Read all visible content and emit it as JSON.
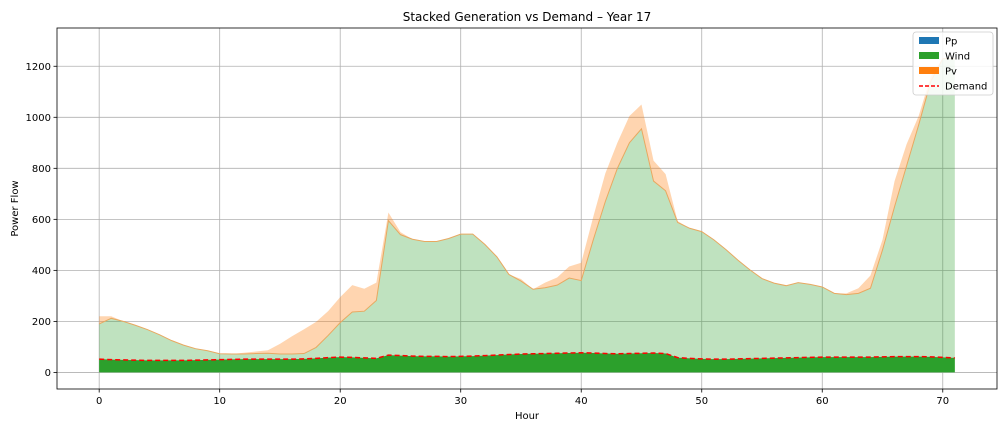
{
  "chart_data": {
    "type": "area",
    "title": "Stacked Generation vs Demand – Year 17",
    "xlabel": "Hour",
    "ylabel": "Power Flow",
    "xlim": [
      -3.5,
      74.5
    ],
    "ylim": [
      -65,
      1350
    ],
    "xticks": [
      0,
      10,
      20,
      30,
      40,
      50,
      60,
      70
    ],
    "yticks": [
      0,
      200,
      400,
      600,
      800,
      1000,
      1200
    ],
    "grid": true,
    "legend_position": "top-right",
    "x": [
      0,
      1,
      2,
      3,
      4,
      5,
      6,
      7,
      8,
      9,
      10,
      11,
      12,
      13,
      14,
      15,
      16,
      17,
      18,
      19,
      20,
      21,
      22,
      23,
      24,
      25,
      26,
      27,
      28,
      29,
      30,
      31,
      32,
      33,
      34,
      35,
      36,
      37,
      38,
      39,
      40,
      41,
      42,
      43,
      44,
      45,
      46,
      47,
      48,
      49,
      50,
      51,
      52,
      53,
      54,
      55,
      56,
      57,
      58,
      59,
      60,
      61,
      62,
      63,
      64,
      65,
      66,
      67,
      68,
      69,
      70,
      71
    ],
    "series": [
      {
        "name": "Pp",
        "color": "#1f77b4",
        "values": [
          0,
          0,
          0,
          0,
          0,
          0,
          0,
          0,
          0,
          0,
          0,
          0,
          0,
          0,
          0,
          0,
          0,
          0,
          0,
          0,
          0,
          0,
          0,
          0,
          0,
          0,
          0,
          0,
          0,
          0,
          0,
          0,
          0,
          0,
          0,
          0,
          0,
          0,
          0,
          0,
          0,
          0,
          0,
          0,
          0,
          0,
          0,
          0,
          0,
          0,
          0,
          0,
          0,
          0,
          0,
          0,
          0,
          0,
          0,
          0,
          0,
          0,
          0,
          0,
          0,
          0,
          0,
          0,
          0,
          0,
          0,
          0
        ]
      },
      {
        "name": "Wind",
        "color": "#2ca02c",
        "values": [
          190,
          212,
          200,
          185,
          168,
          148,
          125,
          107,
          93,
          85,
          73,
          72,
          72,
          74,
          75,
          72,
          72,
          74,
          98,
          145,
          195,
          237,
          240,
          282,
          595,
          540,
          522,
          513,
          513,
          525,
          542,
          542,
          502,
          453,
          384,
          358,
          326,
          332,
          342,
          370,
          360,
          520,
          670,
          800,
          900,
          955,
          750,
          712,
          588,
          565,
          552,
          520,
          482,
          440,
          402,
          368,
          350,
          340,
          352,
          345,
          335,
          310,
          305,
          310,
          330,
          480,
          650,
          810,
          970,
          1140,
          1230,
          1230
        ]
      },
      {
        "name": "Pv",
        "color": "#ff7f0e",
        "values": [
          30,
          8,
          0,
          0,
          0,
          0,
          0,
          0,
          0,
          0,
          0,
          0,
          5,
          8,
          12,
          40,
          70,
          95,
          100,
          95,
          100,
          105,
          88,
          70,
          32,
          10,
          0,
          0,
          0,
          0,
          0,
          0,
          0,
          0,
          0,
          8,
          0,
          20,
          30,
          45,
          70,
          90,
          110,
          100,
          105,
          95,
          80,
          65,
          5,
          0,
          0,
          0,
          0,
          0,
          0,
          0,
          0,
          0,
          0,
          0,
          0,
          0,
          5,
          20,
          50,
          40,
          100,
          85,
          35,
          20,
          0,
          0
        ]
      }
    ],
    "demand": {
      "name": "Demand",
      "color": "#ff0000",
      "values": [
        52,
        50,
        49,
        48,
        47,
        47,
        47,
        47,
        48,
        49,
        50,
        51,
        52,
        52,
        52,
        52,
        52,
        53,
        55,
        58,
        60,
        59,
        57,
        55,
        68,
        66,
        64,
        63,
        63,
        62,
        63,
        64,
        66,
        68,
        70,
        72,
        73,
        74,
        75,
        76,
        77,
        76,
        74,
        73,
        74,
        75,
        76,
        74,
        58,
        55,
        53,
        52,
        52,
        53,
        54,
        55,
        56,
        57,
        58,
        59,
        60,
        60,
        60,
        60,
        60,
        61,
        62,
        62,
        62,
        61,
        59,
        57
      ]
    }
  }
}
